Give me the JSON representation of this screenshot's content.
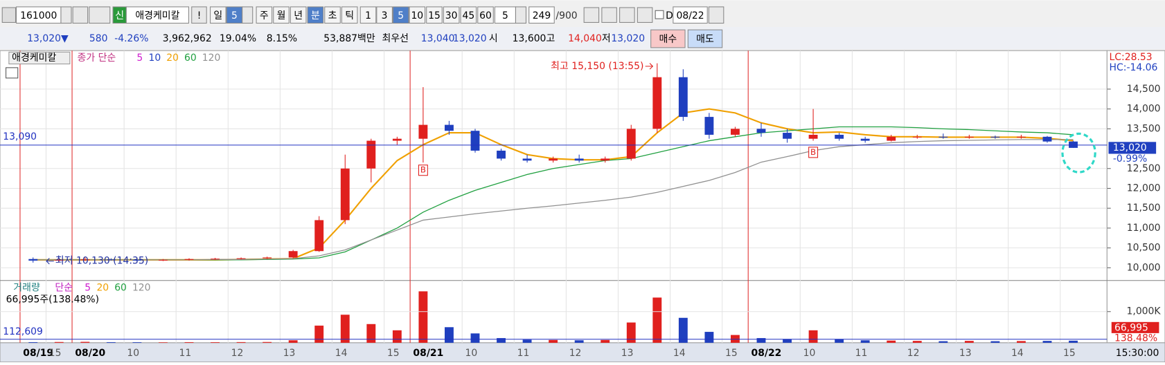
{
  "toolbar": {
    "code": "161000",
    "name_badge": "신",
    "name": "애경케미칼",
    "alert": "!",
    "periods": [
      "일",
      "5",
      "주",
      "월",
      "년",
      "분",
      "초",
      "틱",
      "1",
      "3",
      "5",
      "10",
      "15",
      "30",
      "45",
      "60"
    ],
    "active_periods": [
      1,
      5,
      10
    ],
    "count": "5",
    "range": "249",
    "range_max": "/900",
    "date_check": "D",
    "date": "08/22"
  },
  "quote": [
    {
      "text": "13,020▼",
      "color": "#1f3fbf"
    },
    {
      "text": "580",
      "color": "#1f3fbf"
    },
    {
      "text": "-4.26%",
      "color": "#1f3fbf"
    },
    {
      "text": "3,962,962",
      "color": "#000000"
    },
    {
      "text": "19.04%",
      "color": "#000000"
    },
    {
      "text": "8.15%",
      "color": "#000000"
    },
    {
      "text": "53,887백만",
      "color": "#000000"
    },
    {
      "text": "최우선",
      "color": "#000000"
    },
    {
      "text": "13,040",
      "color": "#1f3fbf"
    },
    {
      "text": "13,020",
      "color": "#1f3fbf"
    },
    {
      "text": "시",
      "color": "#000000"
    },
    {
      "text": "13,600",
      "color": "#000000"
    },
    {
      "text": "고",
      "color": "#000000"
    },
    {
      "text": "14,040",
      "color": "#e0201e"
    },
    {
      "text": "저",
      "color": "#000000"
    },
    {
      "text": "13,020",
      "color": "#1f3fbf"
    }
  ],
  "buy_button": "매수",
  "sell_button": "매도",
  "chart_data": {
    "type": "candlestick",
    "categories": [
      "08/19",
      "15",
      "08/20",
      null,
      "10",
      null,
      "11",
      null,
      "12",
      null,
      "13",
      null,
      "14",
      null,
      "15",
      "08/21",
      null,
      "10",
      null,
      "11",
      null,
      "12",
      null,
      "13",
      null,
      "14",
      null,
      "15",
      "08/22",
      null,
      "10",
      null,
      "11",
      null,
      "12",
      null,
      "13",
      null,
      "14",
      null,
      "15"
    ],
    "open": [
      10220,
      10180,
      10200,
      10210,
      10200,
      10190,
      10200,
      10220,
      10230,
      10240,
      10260,
      10420,
      11200,
      12500,
      13200,
      13250,
      13600,
      13450,
      12950,
      12750,
      12700,
      12750,
      12700,
      12750,
      13500,
      14800,
      13800,
      13350,
      13500,
      13400,
      13250,
      13350,
      13250,
      13200,
      13300,
      13300,
      13280,
      13300,
      13280,
      13300,
      13180
    ],
    "high": [
      10260,
      10230,
      10260,
      10240,
      10230,
      10220,
      10240,
      10250,
      10260,
      10280,
      10450,
      11300,
      12850,
      13250,
      13300,
      14550,
      13700,
      13500,
      13000,
      12850,
      12800,
      12850,
      12800,
      13600,
      15150,
      15000,
      13900,
      13550,
      13650,
      13500,
      14000,
      13400,
      13300,
      13350,
      13350,
      13380,
      13350,
      13330,
      13350,
      13320,
      13200
    ],
    "low": [
      10130,
      10150,
      10170,
      10180,
      10170,
      10170,
      10180,
      10200,
      10210,
      10220,
      10240,
      10400,
      11100,
      12150,
      13100,
      12650,
      13350,
      12900,
      12700,
      12650,
      12650,
      12650,
      12650,
      12700,
      13400,
      13700,
      13250,
      13300,
      13300,
      13150,
      13200,
      13200,
      13150,
      13180,
      13250,
      13250,
      13250,
      13250,
      13250,
      13150,
      13020
    ],
    "close": [
      10180,
      10200,
      10210,
      10200,
      10190,
      10200,
      10220,
      10230,
      10240,
      10260,
      10420,
      11200,
      12500,
      13200,
      13250,
      13600,
      13450,
      12950,
      12750,
      12700,
      12750,
      12700,
      12750,
      13500,
      14800,
      13800,
      13350,
      13500,
      13400,
      13250,
      13350,
      13250,
      13200,
      13300,
      13300,
      13280,
      13300,
      13280,
      13300,
      13180,
      13020
    ],
    "up_color": "#e0201e",
    "down_color": "#1f3fbf",
    "legend_name": "애경케미칼",
    "legend_method": "종가 단순",
    "ma_legend_extra": [
      {
        "name": "5",
        "color": "#d020d0"
      },
      {
        "name": "10",
        "color": "#2040c0"
      }
    ],
    "series": [
      {
        "name": "20",
        "color": "#f0a000",
        "values": [
          10200,
          10200,
          10200,
          10200,
          10200,
          10200,
          10200,
          10200,
          10210,
          10220,
          10230,
          10500,
          11200,
          12000,
          12700,
          13100,
          13400,
          13400,
          13100,
          12850,
          12750,
          12720,
          12720,
          12800,
          13400,
          13900,
          14000,
          13900,
          13650,
          13500,
          13400,
          13420,
          13350,
          13300,
          13300,
          13290,
          13290,
          13290,
          13290,
          13260,
          13200
        ]
      },
      {
        "name": "60",
        "color": "#20a040",
        "values": [
          10200,
          10200,
          10200,
          10200,
          10200,
          10200,
          10200,
          10200,
          10200,
          10210,
          10220,
          10250,
          10400,
          10700,
          11000,
          11400,
          11700,
          11950,
          12150,
          12350,
          12500,
          12600,
          12700,
          12750,
          12900,
          13050,
          13200,
          13300,
          13400,
          13450,
          13500,
          13550,
          13550,
          13550,
          13530,
          13500,
          13480,
          13450,
          13420,
          13400,
          13350
        ]
      },
      {
        "name": "120",
        "color": "#909090",
        "values": [
          10200,
          10200,
          10200,
          10200,
          10200,
          10200,
          10200,
          10210,
          10210,
          10220,
          10230,
          10300,
          10450,
          10700,
          10950,
          11200,
          11280,
          11360,
          11430,
          11500,
          11560,
          11630,
          11700,
          11780,
          11900,
          12050,
          12200,
          12400,
          12660,
          12800,
          12950,
          13050,
          13100,
          13150,
          13180,
          13200,
          13210,
          13220,
          13230,
          13230,
          13230
        ]
      }
    ],
    "ylim": [
      9680,
      15395
    ],
    "yticks": [
      {
        "value": 10000,
        "label": "10,000"
      },
      {
        "value": 10500,
        "label": "10,500"
      },
      {
        "value": 11000,
        "label": "11,000"
      },
      {
        "value": 11500,
        "label": "11,500"
      },
      {
        "value": 12000,
        "label": "12,000"
      },
      {
        "value": 12500,
        "label": "12,500"
      },
      {
        "value": 13500,
        "label": "13,500"
      },
      {
        "value": 14000,
        "label": "14,000"
      },
      {
        "value": 14500,
        "label": "14,500"
      }
    ],
    "reference_line": {
      "value": 13090,
      "label": "13,090"
    },
    "current_price": {
      "value": 13020,
      "label": "13,020"
    },
    "current_change": "-0.99%",
    "lc_label": "LC:28.53",
    "hc_label": "HC:-14.06",
    "high_annotation": "최고 15,150 (13:55)",
    "low_annotation": "최저 10,130 (14:35)",
    "signal_label": "B",
    "volume": {
      "legend_name": "거래량",
      "legend_method": "단순",
      "ma_legend": [
        {
          "name": "5",
          "color": "#d020d0"
        },
        {
          "name": "20",
          "color": "#f0a000"
        },
        {
          "name": "60",
          "color": "#20a040"
        },
        {
          "name": "120",
          "color": "#909090"
        }
      ],
      "info": "66,995주(138.48%)",
      "values": [
        20000,
        25000,
        30000,
        20000,
        18000,
        15000,
        20000,
        18000,
        22000,
        25000,
        80000,
        550000,
        900000,
        600000,
        400000,
        1650000,
        500000,
        300000,
        150000,
        100000,
        90000,
        80000,
        90000,
        650000,
        1450000,
        800000,
        350000,
        250000,
        150000,
        120000,
        400000,
        120000,
        80000,
        70000,
        60000,
        50000,
        60000,
        50000,
        55000,
        60000,
        66995
      ],
      "ylim": [
        0,
        1950000
      ],
      "yticks": [
        {
          "value": 1000000,
          "label": "1,000K"
        }
      ],
      "reference_line": {
        "value": 112609,
        "label": "112,609"
      },
      "current": {
        "value": 66995,
        "label": "66,995"
      },
      "current_ratio": "138.48%"
    },
    "time_label": "15:30:00"
  }
}
